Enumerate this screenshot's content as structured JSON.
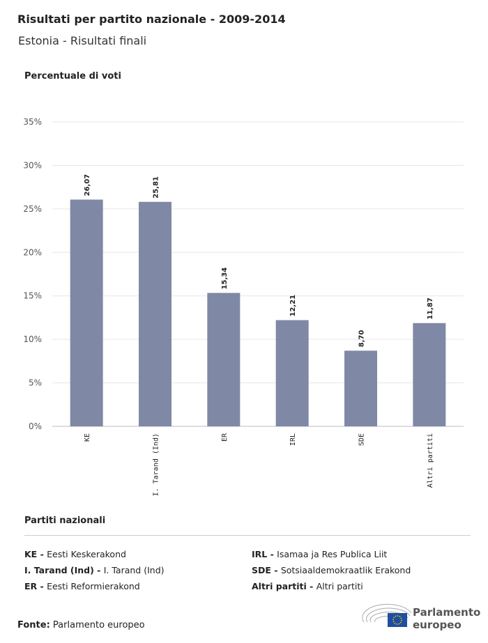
{
  "title": "Risultati per partito nazionale - 2009-2014",
  "subtitle": "Estonia - Risultati finali",
  "chart_data": {
    "type": "bar",
    "ylabel": "Percentuale di voti",
    "categories": [
      "KE",
      "I. Tarand (Ind)",
      "ER",
      "IRL",
      "SDE",
      "Altri partiti"
    ],
    "values": [
      26.07,
      25.81,
      15.34,
      12.21,
      8.7,
      11.87
    ],
    "value_labels": [
      "26,07",
      "25,81",
      "15,34",
      "12,21",
      "8,70",
      "11,87"
    ],
    "ylim": [
      0,
      35
    ],
    "yticks": [
      0,
      5,
      10,
      15,
      20,
      25,
      30,
      35
    ],
    "ytick_labels": [
      "0%",
      "5%",
      "10%",
      "15%",
      "20%",
      "25%",
      "30%",
      "35%"
    ],
    "grid": true,
    "bar_color": "#7f89a5"
  },
  "legend": {
    "title": "Partiti nazionali",
    "items": [
      {
        "abbr": "KE -",
        "name": "Eesti Keskerakond"
      },
      {
        "abbr": "I. Tarand (Ind) -",
        "name": "I. Tarand (Ind)"
      },
      {
        "abbr": "ER -",
        "name": "Eesti Reformierakond"
      },
      {
        "abbr": "IRL -",
        "name": "Isamaa ja Res Publica Liit"
      },
      {
        "abbr": "SDE -",
        "name": "Sotsiaaldemokraatlik Erakond"
      },
      {
        "abbr": "Altri partiti -",
        "name": "Altri partiti"
      }
    ]
  },
  "source": {
    "label": "Fonte:",
    "value": "Parlamento europeo"
  },
  "logo": {
    "line1": "Parlamento",
    "line2": "europeo"
  }
}
